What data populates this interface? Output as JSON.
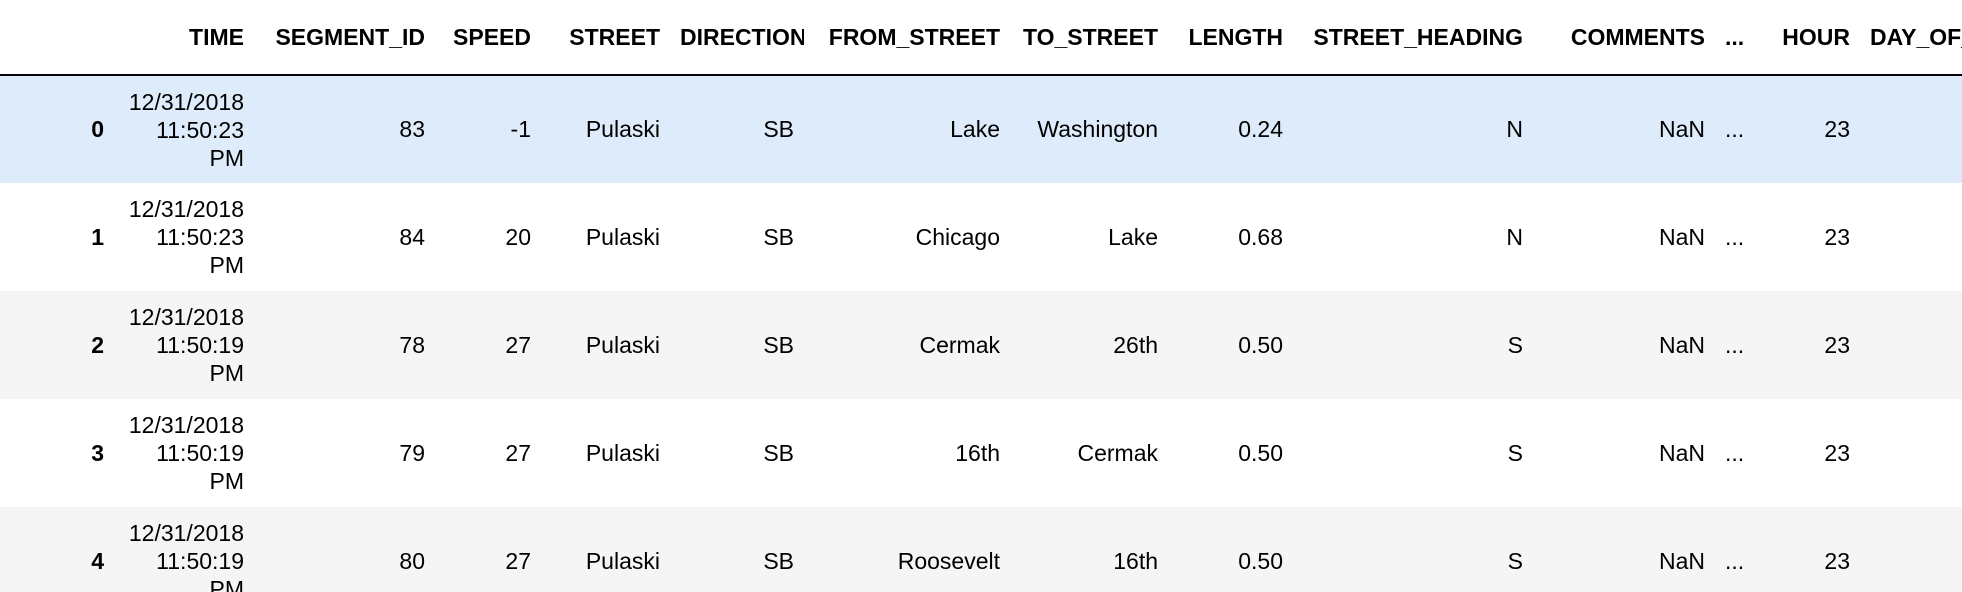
{
  "table": {
    "columns": [
      "",
      "TIME",
      "SEGMENT_ID",
      "SPEED",
      "STREET",
      "DIRECTION",
      "FROM_STREET",
      "TO_STREET",
      "LENGTH",
      "STREET_HEADING",
      "COMMENTS",
      "...",
      "HOUR",
      "DAY_OF_WEEK"
    ],
    "rows": [
      {
        "index": "0",
        "time": [
          "12/31/2018",
          "11:50:23",
          "PM"
        ],
        "segment_id": "83",
        "speed": "-1",
        "street": "Pulaski",
        "direction": "SB",
        "from_street": "Lake",
        "to_street": "Washington",
        "length": "0.24",
        "street_heading": "N",
        "comments": "NaN",
        "ellipsis": "...",
        "hour": "23",
        "day_of_week": ""
      },
      {
        "index": "1",
        "time": [
          "12/31/2018",
          "11:50:23",
          "PM"
        ],
        "segment_id": "84",
        "speed": "20",
        "street": "Pulaski",
        "direction": "SB",
        "from_street": "Chicago",
        "to_street": "Lake",
        "length": "0.68",
        "street_heading": "N",
        "comments": "NaN",
        "ellipsis": "...",
        "hour": "23",
        "day_of_week": ""
      },
      {
        "index": "2",
        "time": [
          "12/31/2018",
          "11:50:19",
          "PM"
        ],
        "segment_id": "78",
        "speed": "27",
        "street": "Pulaski",
        "direction": "SB",
        "from_street": "Cermak",
        "to_street": "26th",
        "length": "0.50",
        "street_heading": "S",
        "comments": "NaN",
        "ellipsis": "...",
        "hour": "23",
        "day_of_week": ""
      },
      {
        "index": "3",
        "time": [
          "12/31/2018",
          "11:50:19",
          "PM"
        ],
        "segment_id": "79",
        "speed": "27",
        "street": "Pulaski",
        "direction": "SB",
        "from_street": "16th",
        "to_street": "Cermak",
        "length": "0.50",
        "street_heading": "S",
        "comments": "NaN",
        "ellipsis": "...",
        "hour": "23",
        "day_of_week": ""
      },
      {
        "index": "4",
        "time": [
          "12/31/2018",
          "11:50:19",
          "PM"
        ],
        "segment_id": "80",
        "speed": "27",
        "street": "Pulaski",
        "direction": "SB",
        "from_street": "Roosevelt",
        "to_street": "16th",
        "length": "0.50",
        "street_heading": "S",
        "comments": "NaN",
        "ellipsis": "...",
        "hour": "23",
        "day_of_week": ""
      }
    ],
    "hovered_row": 0
  },
  "colors": {
    "hover_row": "#deebfa",
    "stripe_row": "#f5f5f5",
    "header_rule": "#000000"
  }
}
